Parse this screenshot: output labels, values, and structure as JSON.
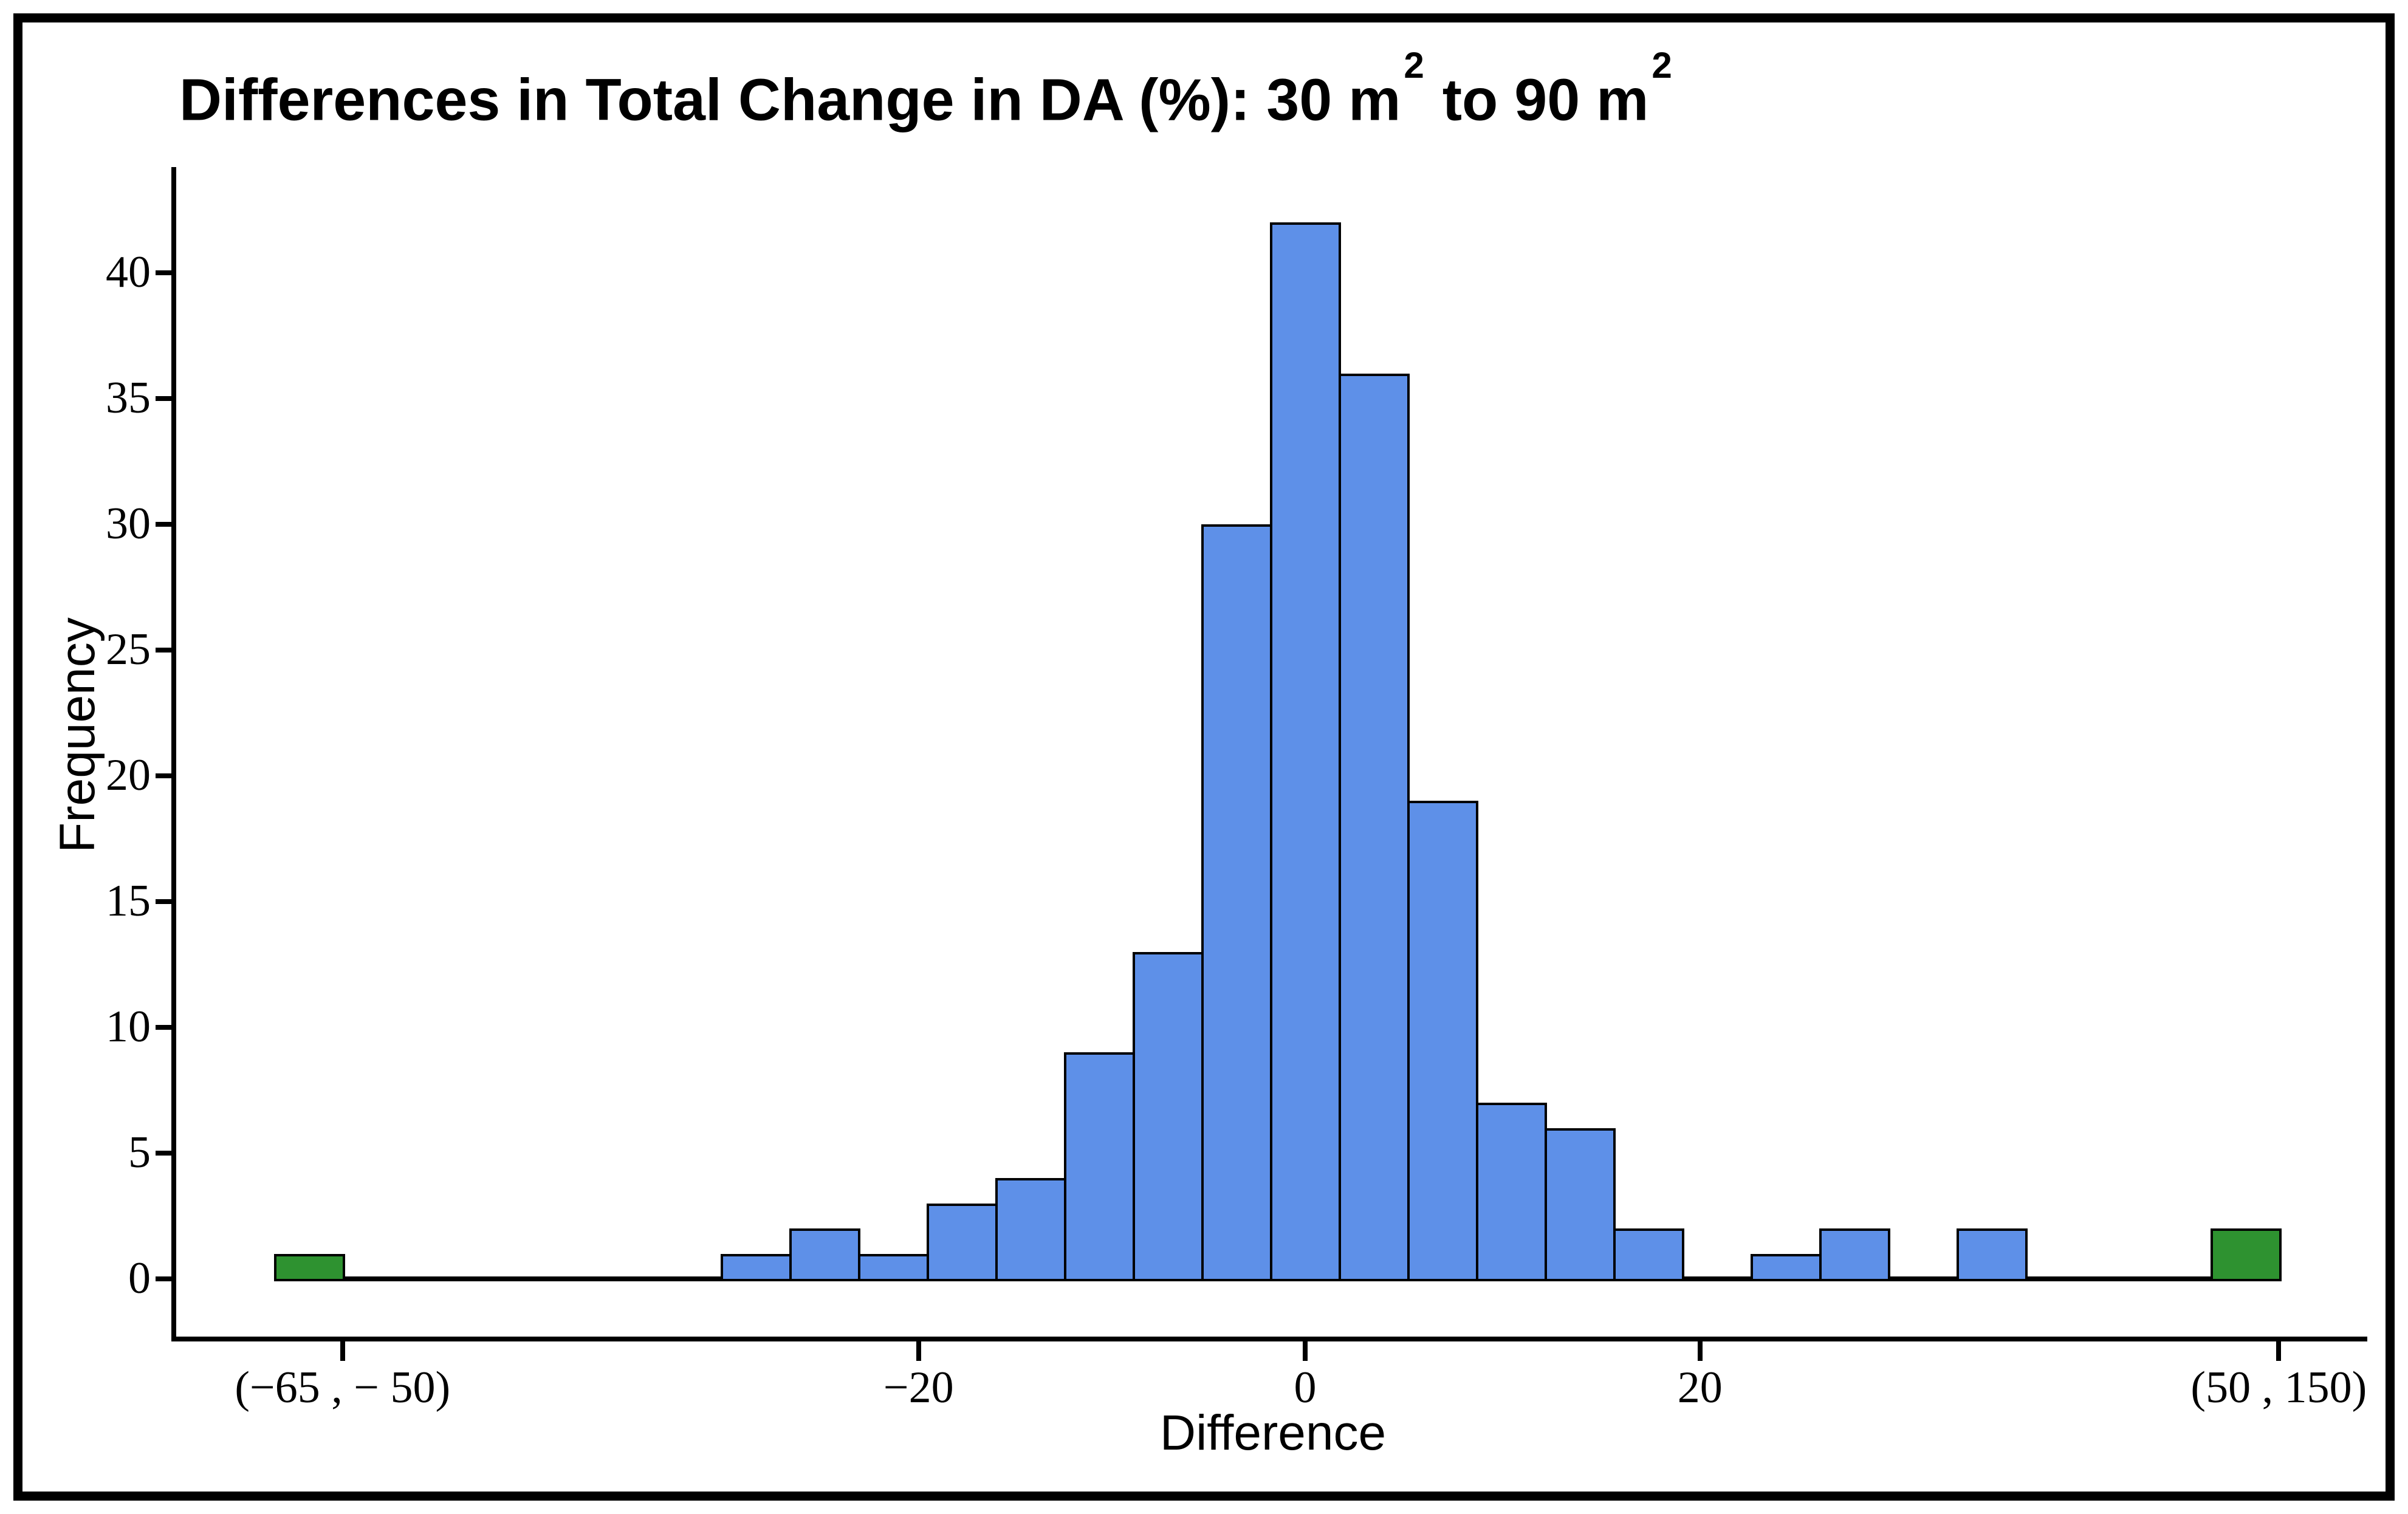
{
  "chart_data": {
    "type": "histogram",
    "title": "Differences in Total Change in DA (%): 30 m² to 90 m²",
    "title_parts": [
      "Differences in Total Change in DA (%): 30 m",
      "2",
      " to 90 m",
      "2"
    ],
    "xlabel": "Difference",
    "ylabel": "Frequency",
    "ylim": [
      0,
      43.5
    ],
    "y_ticks": [
      0,
      5,
      10,
      15,
      20,
      25,
      30,
      35,
      40
    ],
    "grid": false,
    "legend": false,
    "bin_width_pct_approx": 3.6,
    "colors": {
      "bar_fill_blue": "#5E90E8",
      "bar_fill_green": "#2E9230",
      "bar_outline": "#000000",
      "axis": "#000000",
      "background": "#FFFFFF"
    },
    "bars": [
      {
        "bin_index": -14.5,
        "freq": 1,
        "color": "green",
        "range_label": "(−65 , − 50)"
      },
      {
        "bin_index": -8,
        "freq": 1,
        "color": "blue",
        "approx_center": -28.8
      },
      {
        "bin_index": -7,
        "freq": 2,
        "color": "blue",
        "approx_center": -25.2
      },
      {
        "bin_index": -6,
        "freq": 1,
        "color": "blue",
        "approx_center": -21.6
      },
      {
        "bin_index": -5,
        "freq": 3,
        "color": "blue",
        "approx_center": -18.0
      },
      {
        "bin_index": -4,
        "freq": 4,
        "color": "blue",
        "approx_center": -14.4
      },
      {
        "bin_index": -3,
        "freq": 9,
        "color": "blue",
        "approx_center": -10.8
      },
      {
        "bin_index": -2,
        "freq": 13,
        "color": "blue",
        "approx_center": -7.2
      },
      {
        "bin_index": -1,
        "freq": 30,
        "color": "blue",
        "approx_center": -3.6
      },
      {
        "bin_index": 0,
        "freq": 42,
        "color": "blue",
        "approx_center": 0.0
      },
      {
        "bin_index": 1,
        "freq": 36,
        "color": "blue",
        "approx_center": 3.6
      },
      {
        "bin_index": 2,
        "freq": 19,
        "color": "blue",
        "approx_center": 7.2
      },
      {
        "bin_index": 3,
        "freq": 7,
        "color": "blue",
        "approx_center": 10.8
      },
      {
        "bin_index": 4,
        "freq": 6,
        "color": "blue",
        "approx_center": 14.4
      },
      {
        "bin_index": 5,
        "freq": 2,
        "color": "blue",
        "approx_center": 18.0
      },
      {
        "bin_index": 7,
        "freq": 1,
        "color": "blue",
        "approx_center": 25.2
      },
      {
        "bin_index": 8,
        "freq": 2,
        "color": "blue",
        "approx_center": 28.8
      },
      {
        "bin_index": 10,
        "freq": 2,
        "color": "blue",
        "approx_center": 36.0
      },
      {
        "bin_index": 13.7,
        "freq": 2,
        "color": "green",
        "range_label": "(50 , 150)"
      }
    ],
    "x_ticks": [
      {
        "label": "(−65 , − 50)",
        "bin_index": -14.02
      },
      {
        "label": "−20",
        "bin_index": -5.63
      },
      {
        "label": "0",
        "bin_index": 0
      },
      {
        "label": "20",
        "bin_index": 5.75
      },
      {
        "label": "(50 , 150)",
        "bin_index": 14.18
      }
    ]
  }
}
